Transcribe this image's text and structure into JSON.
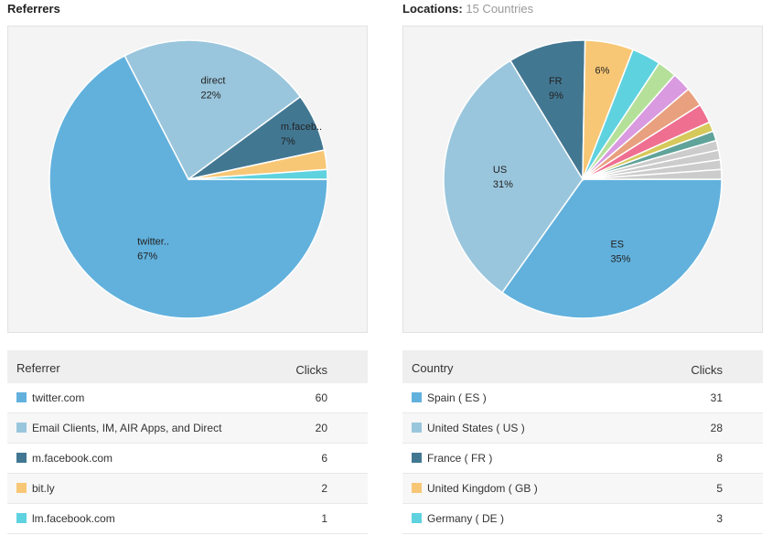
{
  "referrers": {
    "title": "Referrers",
    "table_header": {
      "col1": "Referrer",
      "col2": "Clicks"
    },
    "rows": [
      {
        "name": "twitter.com",
        "clicks": "60",
        "color": "#62b1dd"
      },
      {
        "name": "Email Clients, IM, AIR Apps, and Direct",
        "clicks": "20",
        "color": "#9ac6dd"
      },
      {
        "name": "m.facebook.com",
        "clicks": "6",
        "color": "#427792"
      },
      {
        "name": "bit.ly",
        "clicks": "2",
        "color": "#f8c775"
      },
      {
        "name": "lm.facebook.com",
        "clicks": "1",
        "color": "#5fd2e0"
      }
    ]
  },
  "locations": {
    "title": "Locations:",
    "subtitle": "15 Countries",
    "table_header": {
      "col1": "Country",
      "col2": "Clicks"
    },
    "rows": [
      {
        "name": "Spain ( ES )",
        "clicks": "31",
        "color": "#62b1dd"
      },
      {
        "name": "United States ( US )",
        "clicks": "28",
        "color": "#9ac6dd"
      },
      {
        "name": "France ( FR )",
        "clicks": "8",
        "color": "#427792"
      },
      {
        "name": "United Kingdom ( GB )",
        "clicks": "5",
        "color": "#f8c775"
      },
      {
        "name": "Germany ( DE )",
        "clicks": "3",
        "color": "#5fd2e0"
      }
    ]
  },
  "chart_data": [
    {
      "type": "pie",
      "title": "Referrers",
      "start_angle_deg": 0,
      "slices": [
        {
          "label": "twitter..",
          "pct_label": "67%",
          "value": 60,
          "color": "#62b1dd",
          "show_label": true
        },
        {
          "label": "direct",
          "pct_label": "22%",
          "value": 20,
          "color": "#9ac6dd",
          "show_label": true
        },
        {
          "label": "m.faceb..",
          "pct_label": "7%",
          "value": 6,
          "color": "#427792",
          "show_label": true
        },
        {
          "label": "bit.ly",
          "pct_label": "",
          "value": 2,
          "color": "#f8c775",
          "show_label": false
        },
        {
          "label": "lm.facebook.com",
          "pct_label": "",
          "value": 1,
          "color": "#5fd2e0",
          "show_label": false
        }
      ]
    },
    {
      "type": "pie",
      "title": "Locations",
      "start_angle_deg": 0,
      "slices": [
        {
          "label": "ES",
          "pct_label": "35%",
          "value": 31,
          "color": "#62b1dd",
          "show_label": true
        },
        {
          "label": "US",
          "pct_label": "31%",
          "value": 28,
          "color": "#9ac6dd",
          "show_label": true
        },
        {
          "label": "FR",
          "pct_label": "9%",
          "value": 8,
          "color": "#427792",
          "show_label": true
        },
        {
          "label": "",
          "pct_label": "6%",
          "value": 5,
          "color": "#f8c775",
          "show_label": true
        },
        {
          "label": "DE",
          "pct_label": "",
          "value": 3,
          "color": "#5fd2e0",
          "show_label": false
        },
        {
          "label": "",
          "pct_label": "",
          "value": 2,
          "color": "#b5e09a",
          "show_label": false
        },
        {
          "label": "",
          "pct_label": "",
          "value": 2,
          "color": "#d99ae0",
          "show_label": false
        },
        {
          "label": "",
          "pct_label": "",
          "value": 2,
          "color": "#e8a07e",
          "show_label": false
        },
        {
          "label": "",
          "pct_label": "",
          "value": 2,
          "color": "#ef6f91",
          "show_label": false
        },
        {
          "label": "",
          "pct_label": "",
          "value": 1,
          "color": "#d6c95b",
          "show_label": false
        },
        {
          "label": "",
          "pct_label": "",
          "value": 1,
          "color": "#5fa39a",
          "show_label": false
        },
        {
          "label": "",
          "pct_label": "",
          "value": 1,
          "color": "#cccccc",
          "show_label": false
        },
        {
          "label": "",
          "pct_label": "",
          "value": 1,
          "color": "#cccccc",
          "show_label": false
        },
        {
          "label": "",
          "pct_label": "",
          "value": 1,
          "color": "#cccccc",
          "show_label": false
        },
        {
          "label": "",
          "pct_label": "",
          "value": 1,
          "color": "#cccccc",
          "show_label": false
        }
      ]
    }
  ]
}
